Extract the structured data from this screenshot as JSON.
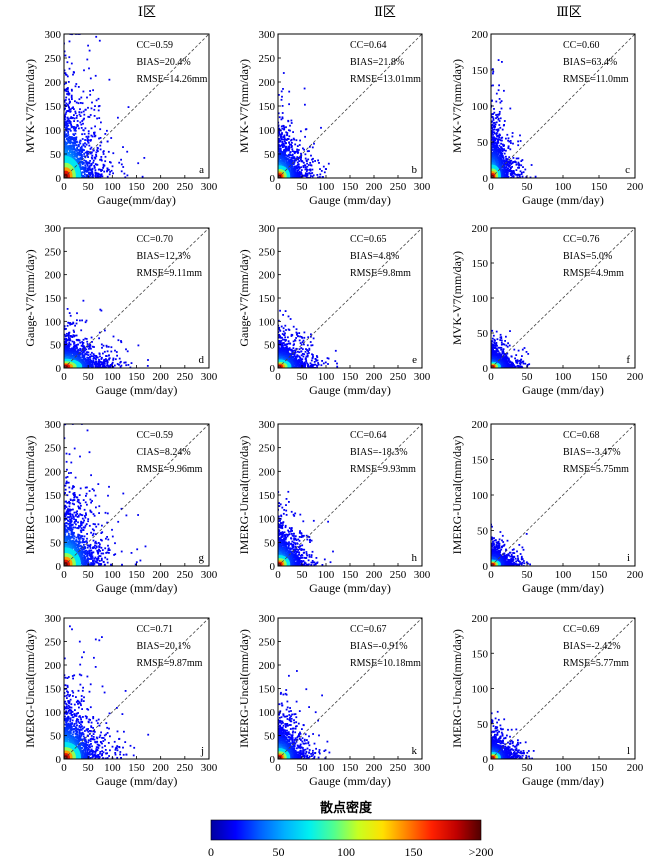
{
  "column_titles": [
    "Ⅰ区",
    "Ⅱ区",
    "Ⅲ区"
  ],
  "colorbar": {
    "title": "散点密度",
    "ticks": [
      "0",
      "50",
      "100",
      "150",
      ">200"
    ],
    "colors": [
      "#0000a0",
      "#0000ff",
      "#0060ff",
      "#00b0ff",
      "#00f0f0",
      "#50ff90",
      "#c8ff20",
      "#ffe000",
      "#ff8000",
      "#ff2000",
      "#c00000",
      "#500000"
    ]
  },
  "chart_data": [
    {
      "type": "scatter",
      "panel": "a",
      "xlabel": "Gauge(mm/day)",
      "ylabel": "MVK-V7(mm/day)",
      "xlim": [
        0,
        300
      ],
      "ylim": [
        0,
        300
      ],
      "xticks": [
        "0",
        "50",
        "100",
        "150",
        "200",
        "250",
        "300"
      ],
      "yticks": [
        "0",
        "50",
        "100",
        "150",
        "200",
        "250",
        "300"
      ],
      "stats": [
        "CC=0.59",
        "BIAS=20.4%",
        "RMSE=14.26mm"
      ],
      "spread": [
        1.3,
        2.6
      ],
      "seed": 11
    },
    {
      "type": "scatter",
      "panel": "b",
      "xlabel": "Gauge (mm/day)",
      "ylabel": "MVK-V7(mm/day)",
      "xlim": [
        0,
        300
      ],
      "ylim": [
        0,
        300
      ],
      "xticks": [
        "0",
        "50",
        "100",
        "150",
        "200",
        "250",
        "300"
      ],
      "yticks": [
        "0",
        "50",
        "100",
        "150",
        "200",
        "250",
        "300"
      ],
      "stats": [
        "CC=0.64",
        "BIAS=21.8%",
        "RMSE=13.01mm"
      ],
      "spread": [
        0.9,
        1.4
      ],
      "seed": 22
    },
    {
      "type": "scatter",
      "panel": "c",
      "xlabel": "Gauge (mm/day)",
      "ylabel": "MVK-V7(mm/day)",
      "xlim": [
        0,
        200
      ],
      "ylim": [
        0,
        200
      ],
      "xticks": [
        "0",
        "50",
        "100",
        "150",
        "200"
      ],
      "yticks": [
        "0",
        "50",
        "100",
        "150",
        "200"
      ],
      "stats": [
        "CC=0.60",
        "BIAS=63.4%",
        "RMSE=11.0mm"
      ],
      "spread": [
        0.7,
        1.5
      ],
      "seed": 33
    },
    {
      "type": "scatter",
      "panel": "d",
      "xlabel": "Gauge (mm/day)",
      "ylabel": "Gauge-V7(mm/day)",
      "xlim": [
        0,
        300
      ],
      "ylim": [
        0,
        300
      ],
      "xticks": [
        "0",
        "50",
        "100",
        "150",
        "200",
        "250",
        "300"
      ],
      "yticks": [
        "0",
        "50",
        "100",
        "150",
        "200",
        "250",
        "300"
      ],
      "stats": [
        "CC=0.70",
        "BIAS=12.3%",
        "RMSE=9.11mm"
      ],
      "spread": [
        1.4,
        1.0
      ],
      "seed": 44
    },
    {
      "type": "scatter",
      "panel": "e",
      "xlabel": "Gauge (mm/day)",
      "ylabel": "Gauge-V7(mm/day)",
      "xlim": [
        0,
        300
      ],
      "ylim": [
        0,
        300
      ],
      "xticks": [
        "0",
        "50",
        "100",
        "150",
        "200",
        "250",
        "300"
      ],
      "yticks": [
        "0",
        "50",
        "100",
        "150",
        "200",
        "250",
        "300"
      ],
      "stats": [
        "CC=0.65",
        "BIAS=4.8%",
        "RMSE=9.8mm"
      ],
      "spread": [
        1.0,
        0.9
      ],
      "seed": 55
    },
    {
      "type": "scatter",
      "panel": "f",
      "xlabel": "Gauge (mm/day)",
      "ylabel": "MVK-V7(mm/day)",
      "xlim": [
        0,
        200
      ],
      "ylim": [
        0,
        200
      ],
      "xticks": [
        "0",
        "50",
        "100",
        "150",
        "200"
      ],
      "yticks": [
        "0",
        "50",
        "100",
        "150",
        "200"
      ],
      "stats": [
        "CC=0.76",
        "BIAS=5.0%",
        "RMSE=4.9mm"
      ],
      "spread": [
        0.7,
        0.6
      ],
      "seed": 66
    },
    {
      "type": "scatter",
      "panel": "g",
      "xlabel": "Gauge (mm/day)",
      "ylabel": "IMERG-Uncal(mm/day)",
      "xlim": [
        0,
        300
      ],
      "ylim": [
        0,
        300
      ],
      "xticks": [
        "0",
        "50",
        "100",
        "150",
        "200",
        "250",
        "300"
      ],
      "yticks": [
        "0",
        "50",
        "100",
        "150",
        "200",
        "250",
        "300"
      ],
      "stats": [
        "CC=0.59",
        "CIAS=8.24%",
        "RMSE=9.96mm"
      ],
      "spread": [
        1.3,
        2.2
      ],
      "seed": 77
    },
    {
      "type": "scatter",
      "panel": "h",
      "xlabel": "Gauge (mm/day)",
      "ylabel": "IMERG-Uncal(mm/day)",
      "xlim": [
        0,
        300
      ],
      "ylim": [
        0,
        300
      ],
      "xticks": [
        "0",
        "50",
        "100",
        "150",
        "200",
        "250",
        "300"
      ],
      "yticks": [
        "0",
        "50",
        "100",
        "150",
        "200",
        "250",
        "300"
      ],
      "stats": [
        "CC=0.64",
        "BIAS=-18.3%",
        "RMSE=9.93mm"
      ],
      "spread": [
        0.9,
        1.2
      ],
      "seed": 88
    },
    {
      "type": "scatter",
      "panel": "i",
      "xlabel": "Gauge (mm/day)",
      "ylabel": "IMERG-Uncal(mm/day)",
      "xlim": [
        0,
        200
      ],
      "ylim": [
        0,
        200
      ],
      "xticks": [
        "0",
        "50",
        "100",
        "150",
        "200"
      ],
      "yticks": [
        "0",
        "50",
        "100",
        "150",
        "200"
      ],
      "stats": [
        "CC=0.68",
        "BIAS=-3.47%",
        "RMSE=5.75mm"
      ],
      "spread": [
        0.7,
        0.6
      ],
      "seed": 99
    },
    {
      "type": "scatter",
      "panel": "j",
      "xlabel": "Gauge (mm/day)",
      "ylabel": "IMERG-Uncal(mm/day)",
      "xlim": [
        0,
        300
      ],
      "ylim": [
        0,
        300
      ],
      "xticks": [
        "0",
        "50",
        "100",
        "150",
        "200",
        "250",
        "300"
      ],
      "yticks": [
        "0",
        "50",
        "100",
        "150",
        "200",
        "250",
        "300"
      ],
      "stats": [
        "CC=0.71",
        "BIAS=20.1%",
        "RMSE=9.87mm"
      ],
      "spread": [
        1.3,
        2.0
      ],
      "seed": 111
    },
    {
      "type": "scatter",
      "panel": "k",
      "xlabel": "Gauge (mm/day)",
      "ylabel": "IMERG-Uncal(mm/day)",
      "xlim": [
        0,
        300
      ],
      "ylim": [
        0,
        300
      ],
      "xticks": [
        "0",
        "50",
        "100",
        "150",
        "200",
        "250",
        "300"
      ],
      "yticks": [
        "0",
        "50",
        "100",
        "150",
        "200",
        "250",
        "300"
      ],
      "stats": [
        "CC=0.67",
        "BIAS=-0.91%",
        "RMSE=10.18mm"
      ],
      "spread": [
        0.9,
        1.2
      ],
      "seed": 122
    },
    {
      "type": "scatter",
      "panel": "l",
      "xlabel": "Gauge (mm/day)",
      "ylabel": "IMERG-Uncal(mm/day)",
      "xlim": [
        0,
        200
      ],
      "ylim": [
        0,
        200
      ],
      "xticks": [
        "0",
        "50",
        "100",
        "150",
        "200"
      ],
      "yticks": [
        "0",
        "50",
        "100",
        "150",
        "200"
      ],
      "stats": [
        "CC=0.69",
        "BIAS=-2.42%",
        "RMSE=5.77mm"
      ],
      "spread": [
        0.7,
        0.7
      ],
      "seed": 133
    }
  ]
}
